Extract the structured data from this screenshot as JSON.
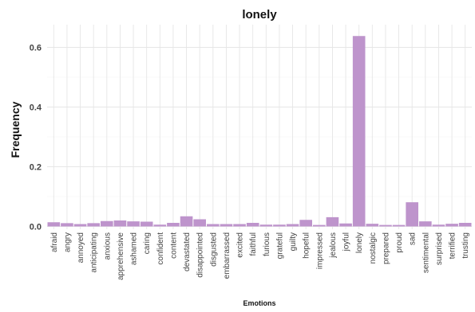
{
  "chart_data": {
    "type": "bar",
    "title": "lonely",
    "xlabel": "Emotions",
    "ylabel": "Frequency",
    "ylim": [
      0,
      0.68
    ],
    "yticks": [
      "0.0",
      "0.2",
      "0.4",
      "0.6"
    ],
    "bar_color": "#be94cc",
    "grid": true,
    "categories": [
      "afraid",
      "angry",
      "annoyed",
      "anticipating",
      "anxious",
      "apprehensive",
      "ashamed",
      "caring",
      "confident",
      "content",
      "devastated",
      "disappointed",
      "disgusted",
      "embarrassed",
      "excited",
      "faithful",
      "furious",
      "grateful",
      "guilty",
      "hopeful",
      "impressed",
      "jealous",
      "joyful",
      "lonely",
      "nostalgic",
      "prepared",
      "proud",
      "sad",
      "sentimental",
      "surprised",
      "terrified",
      "trusting"
    ],
    "values": [
      0.014,
      0.011,
      0.008,
      0.011,
      0.018,
      0.02,
      0.017,
      0.016,
      0.006,
      0.012,
      0.034,
      0.024,
      0.008,
      0.008,
      0.008,
      0.012,
      0.006,
      0.006,
      0.008,
      0.022,
      0.005,
      0.031,
      0.01,
      0.638,
      0.009,
      0.005,
      0.005,
      0.081,
      0.017,
      0.006,
      0.009,
      0.012
    ]
  }
}
